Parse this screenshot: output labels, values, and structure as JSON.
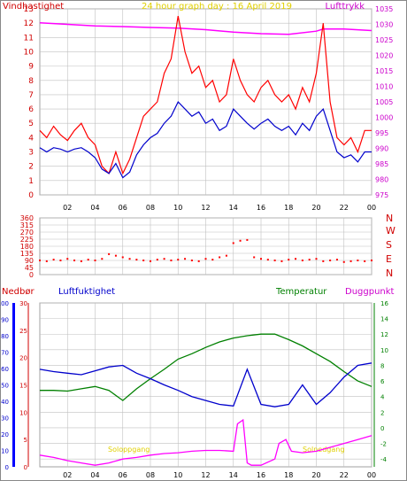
{
  "header": {
    "left_label": "Vindhastighet",
    "title": "24 hour graph day : 16 April 2019",
    "right_label": "Lufttrykk"
  },
  "direction_labels": [
    "N",
    "W",
    "S",
    "E",
    "N"
  ],
  "bottom_header": {
    "precip": "Nedbør",
    "humidity": "Luftfuktighet",
    "temperature": "Temperatur",
    "dewpoint": "Duggpunkt"
  },
  "sun_labels": {
    "sunrise": "Soloppgang",
    "sunset": "Solnedgang"
  },
  "colors": {
    "wind_gust": "#ff0000",
    "wind_avg": "#0000cc",
    "pressure": "#ff00ff",
    "direction": "#ff0000",
    "humidity": "#0000cc",
    "temperature": "#008000",
    "dewpoint": "#ff00ff",
    "precip": "#0000ff",
    "sun": "#ffff00",
    "grid": "#c0c0c0"
  },
  "chart_data": [
    {
      "type": "line",
      "title": "24 hour graph day : 16 April 2019",
      "xlabel": "",
      "x_ticks": [
        "02",
        "04",
        "06",
        "08",
        "10",
        "12",
        "14",
        "16",
        "18",
        "20",
        "22",
        "00"
      ],
      "ylim_left": [
        0,
        13
      ],
      "ylabel_left": "Vindhastighet",
      "y_ticks_left": [
        "0",
        "1",
        "2",
        "3",
        "4",
        "5",
        "6",
        "7",
        "8",
        "9",
        "10",
        "11",
        "12",
        "13"
      ],
      "ylim_right": [
        975,
        1035
      ],
      "ylabel_right": "Lufttrykk",
      "y_ticks_right": [
        "975",
        "980",
        "985",
        "990",
        "995",
        "1000",
        "1005",
        "1010",
        "1015",
        "1020",
        "1025",
        "1030",
        "1035"
      ],
      "series": [
        {
          "name": "Lufttrykk",
          "axis": "right",
          "x": [
            0,
            2,
            4,
            6,
            8,
            10,
            12,
            14,
            16,
            18,
            20,
            20.5,
            22,
            24
          ],
          "values": [
            1030.5,
            1030,
            1029.5,
            1029.3,
            1029,
            1028.8,
            1028.3,
            1027.5,
            1027,
            1026.8,
            1027.8,
            1028.5,
            1028.5,
            1028
          ]
        },
        {
          "name": "Vindkast",
          "axis": "left",
          "x": [
            0,
            0.5,
            1,
            1.5,
            2,
            2.5,
            3,
            3.5,
            4,
            4.5,
            5,
            5.5,
            6,
            6.5,
            7,
            7.5,
            8,
            8.5,
            9,
            9.5,
            10,
            10.5,
            11,
            11.5,
            12,
            12.5,
            13,
            13.5,
            14,
            14.5,
            15,
            15.5,
            16,
            16.5,
            17,
            17.5,
            18,
            18.5,
            19,
            19.5,
            20,
            20.5,
            21,
            21.5,
            22,
            22.5,
            23,
            23.5,
            24
          ],
          "values": [
            4.5,
            4,
            4.8,
            4.2,
            3.8,
            4.5,
            5,
            4,
            3.5,
            2,
            1.5,
            3,
            1.5,
            2.5,
            4,
            5.5,
            6,
            6.5,
            8.5,
            9.5,
            12.5,
            10,
            8.5,
            9,
            7.5,
            8,
            6.5,
            7,
            9.5,
            8,
            7,
            6.5,
            7.5,
            8,
            7,
            6.5,
            7,
            6,
            7.5,
            6.5,
            8.5,
            12,
            6.5,
            4,
            3.5,
            4,
            3,
            4.5,
            4.5
          ]
        },
        {
          "name": "Vindhastighet",
          "axis": "left",
          "x": [
            0,
            0.5,
            1,
            1.5,
            2,
            2.5,
            3,
            3.5,
            4,
            4.5,
            5,
            5.5,
            6,
            6.5,
            7,
            7.5,
            8,
            8.5,
            9,
            9.5,
            10,
            10.5,
            11,
            11.5,
            12,
            12.5,
            13,
            13.5,
            14,
            14.5,
            15,
            15.5,
            16,
            16.5,
            17,
            17.5,
            18,
            18.5,
            19,
            19.5,
            20,
            20.5,
            21,
            21.5,
            22,
            22.5,
            23,
            23.5,
            24
          ],
          "values": [
            3.3,
            3,
            3.3,
            3.2,
            3,
            3.2,
            3.3,
            3,
            2.6,
            1.8,
            1.5,
            2.2,
            1.2,
            1.6,
            2.8,
            3.5,
            4,
            4.3,
            5,
            5.5,
            6.5,
            6,
            5.5,
            5.8,
            5,
            5.3,
            4.5,
            4.8,
            6,
            5.5,
            5,
            4.6,
            5,
            5.3,
            4.8,
            4.5,
            4.8,
            4.2,
            5,
            4.5,
            5.5,
            6,
            4.5,
            3,
            2.6,
            2.8,
            2.3,
            3,
            3
          ]
        }
      ]
    },
    {
      "type": "scatter",
      "xlabel": "",
      "ylim": [
        0,
        360
      ],
      "y_ticks": [
        "0",
        "45",
        "90",
        "135",
        "180",
        "225",
        "270",
        "315",
        "360"
      ],
      "series": [
        {
          "name": "Vindretning",
          "x": [
            0,
            0.5,
            1,
            1.5,
            2,
            2.5,
            3,
            3.5,
            4,
            4.5,
            5,
            5.5,
            6,
            6.5,
            7,
            7.5,
            8,
            8.5,
            9,
            9.5,
            10,
            10.5,
            11,
            11.5,
            12,
            12.5,
            13,
            13.5,
            14,
            14.5,
            15,
            15.5,
            16,
            16.5,
            17,
            17.5,
            18,
            18.5,
            19,
            19.5,
            20,
            20.5,
            21,
            21.5,
            22,
            22.5,
            23,
            23.5,
            24
          ],
          "values": [
            90,
            85,
            95,
            90,
            100,
            90,
            85,
            95,
            90,
            100,
            130,
            120,
            110,
            100,
            95,
            90,
            85,
            95,
            100,
            90,
            95,
            100,
            90,
            85,
            100,
            95,
            110,
            120,
            200,
            215,
            220,
            110,
            100,
            95,
            90,
            85,
            95,
            100,
            90,
            95,
            100,
            85,
            90,
            95,
            80,
            85,
            90,
            85,
            90
          ]
        }
      ]
    },
    {
      "type": "line",
      "xlabel": "",
      "x_ticks": [
        "02",
        "04",
        "06",
        "08",
        "10",
        "12",
        "14",
        "16",
        "18",
        "20",
        "22",
        "00"
      ],
      "axes": {
        "precip": {
          "label": "Nedbør",
          "ticks": [
            "0",
            "10",
            "20",
            "30",
            "40",
            "50",
            "60",
            "70",
            "80",
            "90",
            "100"
          ],
          "ylim": [
            0,
            100
          ]
        },
        "humidity": {
          "label": "Luftfuktighet",
          "ticks": [
            "0",
            "5",
            "10",
            "15",
            "20",
            "25",
            "30"
          ],
          "ylim": [
            0,
            30
          ]
        },
        "temperature": {
          "label": "Temperatur",
          "ticks": [
            "-4",
            "-2",
            "0",
            "2",
            "4",
            "6",
            "8",
            "10",
            "12",
            "14",
            "16"
          ],
          "ylim": [
            -5,
            16
          ]
        },
        "dewpoint": {
          "label": "Duggpunkt"
        }
      },
      "series": [
        {
          "name": "Temperatur",
          "axis": "temperature",
          "x": [
            0,
            1,
            2,
            3,
            4,
            5,
            6,
            7,
            8,
            9,
            10,
            11,
            12,
            13,
            14,
            15,
            16,
            17,
            18,
            19,
            20,
            21,
            22,
            23,
            24
          ],
          "values": [
            4.8,
            4.8,
            4.7,
            5.0,
            5.3,
            4.8,
            3.5,
            5.0,
            6.3,
            7.5,
            8.8,
            9.5,
            10.3,
            11.0,
            11.5,
            11.8,
            12.0,
            12.0,
            11.3,
            10.5,
            9.5,
            8.5,
            7.2,
            6.0,
            5.3
          ]
        },
        {
          "name": "Luftfuktighet",
          "axis": "temperature",
          "x": [
            0,
            1,
            2,
            3,
            4,
            5,
            6,
            7,
            8,
            9,
            10,
            11,
            12,
            13,
            14,
            15,
            16,
            17,
            18,
            19,
            20,
            21,
            22,
            23,
            24
          ],
          "values": [
            7.5,
            7.2,
            7.0,
            6.8,
            7.3,
            7.8,
            8.0,
            7.0,
            6.3,
            5.5,
            4.8,
            4.0,
            3.5,
            3.0,
            2.8,
            7.5,
            3.0,
            2.7,
            3.0,
            5.5,
            3.0,
            4.5,
            6.5,
            8.0,
            8.3
          ]
        },
        {
          "name": "Duggpunkt",
          "axis": "temperature",
          "x": [
            0,
            1,
            2,
            3,
            4,
            5,
            6,
            7,
            8,
            9,
            10,
            11,
            12,
            13,
            14,
            14.3,
            14.7,
            15,
            15.3,
            16,
            17,
            17.3,
            17.8,
            18.2,
            19,
            20,
            21,
            22,
            23,
            24
          ],
          "values": [
            -3.5,
            -3.8,
            -4.2,
            -4.5,
            -4.8,
            -4.5,
            -4.0,
            -3.8,
            -3.5,
            -3.3,
            -3.2,
            -3.0,
            -2.9,
            -2.9,
            -3.0,
            0.5,
            1.0,
            -4.5,
            -4.8,
            -4.8,
            -4.0,
            -2.0,
            -1.5,
            -3.0,
            -3.2,
            -3.0,
            -2.5,
            -2.0,
            -1.5,
            -1.0
          ]
        }
      ]
    }
  ]
}
